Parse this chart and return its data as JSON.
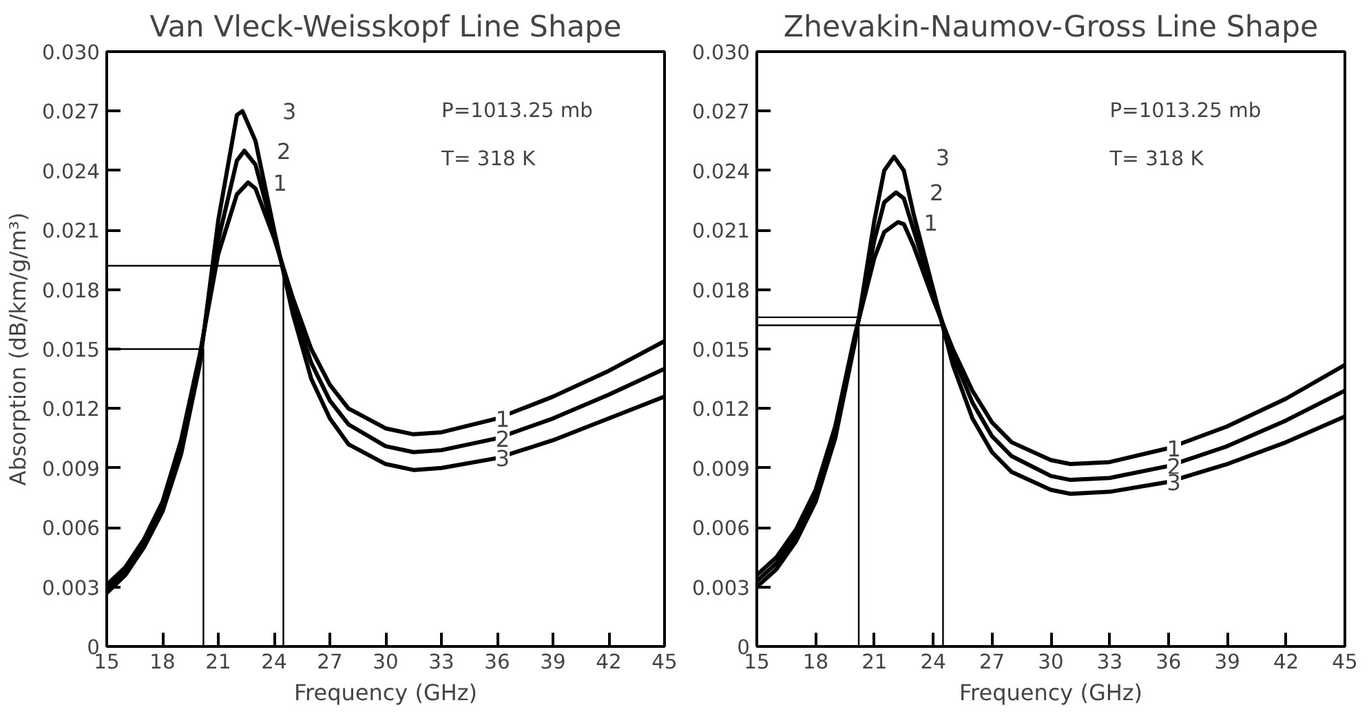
{
  "chart_data": [
    {
      "type": "line",
      "title": "Van Vleck-Weisskopf Line Shape",
      "xlabel": "Frequency (GHz)",
      "ylabel": "Absorption (dB/km/g/m³)",
      "xlim": [
        15,
        45
      ],
      "ylim": [
        0,
        0.03
      ],
      "xticks": [
        15,
        18,
        21,
        24,
        27,
        30,
        33,
        36,
        39,
        42,
        45
      ],
      "yticks": [
        0,
        {
          "value": 0.003,
          "label": "0.003"
        },
        {
          "value": 0.006,
          "label": "0.006"
        },
        {
          "value": 0.009,
          "label": "0.009"
        },
        {
          "value": 0.012,
          "label": "0.012"
        },
        {
          "value": 0.015,
          "label": "0.015"
        },
        {
          "value": 0.018,
          "label": "0.018"
        },
        {
          "value": 0.021,
          "label": "0.021"
        },
        {
          "value": 0.024,
          "label": "0.024"
        },
        {
          "value": 0.027,
          "label": "0.027"
        },
        {
          "value": 0.03,
          "label": "0.030"
        }
      ],
      "annotations": [
        "P=1013.25 mb",
        "T= 318 K"
      ],
      "grid": false,
      "legend": false,
      "series": [
        {
          "name": "1",
          "color": "#000000",
          "x": [
            15,
            16,
            17,
            18,
            19,
            20,
            21,
            22,
            22.6,
            23,
            24,
            25,
            26,
            27,
            28,
            30,
            31.5,
            33,
            36,
            39,
            42,
            45
          ],
          "values": [
            0.0031,
            0.004,
            0.0054,
            0.0073,
            0.0104,
            0.0147,
            0.0198,
            0.0228,
            0.0234,
            0.0231,
            0.0206,
            0.0176,
            0.015,
            0.0132,
            0.012,
            0.011,
            0.0107,
            0.0108,
            0.0115,
            0.0126,
            0.0139,
            0.0154
          ]
        },
        {
          "name": "2",
          "color": "#000000",
          "x": [
            15,
            16,
            17,
            18,
            19,
            20,
            21,
            22,
            22.4,
            23,
            24,
            25,
            26,
            27,
            28,
            30,
            31.5,
            33,
            36,
            39,
            42,
            45
          ],
          "values": [
            0.0029,
            0.0038,
            0.0052,
            0.0071,
            0.0101,
            0.0145,
            0.0205,
            0.0245,
            0.025,
            0.0243,
            0.0208,
            0.0172,
            0.0143,
            0.0124,
            0.0112,
            0.0101,
            0.0098,
            0.0099,
            0.0105,
            0.0115,
            0.0127,
            0.014
          ]
        },
        {
          "name": "3",
          "color": "#000000",
          "x": [
            15,
            16,
            17,
            18,
            19,
            20,
            21,
            22,
            22.3,
            23,
            24,
            25,
            26,
            27,
            28,
            30,
            31.5,
            33,
            36,
            39,
            42,
            45
          ],
          "values": [
            0.0027,
            0.0036,
            0.005,
            0.0068,
            0.0097,
            0.0142,
            0.0215,
            0.0268,
            0.027,
            0.0255,
            0.021,
            0.0168,
            0.0135,
            0.0115,
            0.0102,
            0.0092,
            0.0089,
            0.009,
            0.0095,
            0.0104,
            0.0115,
            0.0126
          ]
        },
        {
          "color": "#000000",
          "x": [
            15,
            24.5,
            24.5
          ],
          "values": [
            0.0192,
            0.0192,
            0
          ]
        },
        {
          "color": "#000000",
          "x": [
            15,
            20.2,
            20.2
          ],
          "values": [
            0.015,
            0.015,
            0
          ]
        }
      ]
    },
    {
      "type": "line",
      "title": "Zhevakin-Naumov-Gross Line Shape",
      "xlabel": "Frequency (GHz)",
      "xlim": [
        15,
        45
      ],
      "ylim": [
        0,
        0.03
      ],
      "xticks": [
        15,
        18,
        21,
        24,
        27,
        30,
        33,
        36,
        39,
        42,
        45
      ],
      "yticks": [
        0,
        {
          "value": 0.003,
          "label": "0.003"
        },
        {
          "value": 0.006,
          "label": "0.006"
        },
        {
          "value": 0.009,
          "label": "0.009"
        },
        {
          "value": 0.012,
          "label": "0.012"
        },
        {
          "value": 0.015,
          "label": "0.015"
        },
        {
          "value": 0.018,
          "label": "0.018"
        },
        {
          "value": 0.021,
          "label": "0.021"
        },
        {
          "value": 0.024,
          "label": "0.024"
        },
        {
          "value": 0.027,
          "label": "0.027"
        },
        {
          "value": 0.03,
          "label": "0.030"
        }
      ],
      "annotations": [
        "P=1013.25 mb",
        "T= 318 K"
      ],
      "grid": false,
      "legend": false,
      "series": [
        {
          "name": "1",
          "color": "#000000",
          "x": [
            15,
            16,
            17,
            18,
            19,
            20,
            21,
            21.5,
            22.2,
            22.5,
            23,
            24,
            25,
            26,
            27,
            28,
            30,
            31,
            33,
            36,
            39,
            42,
            45
          ],
          "values": [
            0.0036,
            0.0045,
            0.0059,
            0.0079,
            0.0111,
            0.0157,
            0.0196,
            0.0209,
            0.0214,
            0.0213,
            0.0202,
            0.0175,
            0.015,
            0.0129,
            0.0113,
            0.0103,
            0.0094,
            0.0092,
            0.0093,
            0.01,
            0.0111,
            0.0125,
            0.0142
          ]
        },
        {
          "name": "2",
          "color": "#000000",
          "x": [
            15,
            16,
            17,
            18,
            19,
            20,
            21,
            21.5,
            22.1,
            22.5,
            23,
            24,
            25,
            26,
            27,
            28,
            30,
            31,
            33,
            36,
            39,
            42,
            45
          ],
          "values": [
            0.0033,
            0.0042,
            0.0056,
            0.0076,
            0.0108,
            0.0155,
            0.0205,
            0.0224,
            0.0229,
            0.0226,
            0.021,
            0.0178,
            0.0147,
            0.0123,
            0.0106,
            0.0096,
            0.0086,
            0.0084,
            0.0085,
            0.0091,
            0.0101,
            0.0114,
            0.0129
          ]
        },
        {
          "name": "3",
          "color": "#000000",
          "x": [
            15,
            16,
            17,
            18,
            19,
            20,
            21,
            21.5,
            22,
            22.5,
            23,
            24,
            25,
            26,
            27,
            28,
            30,
            31,
            33,
            36,
            39,
            42,
            45
          ],
          "values": [
            0.003,
            0.0039,
            0.0053,
            0.0073,
            0.0105,
            0.0153,
            0.0215,
            0.024,
            0.0247,
            0.024,
            0.0218,
            0.018,
            0.0142,
            0.0115,
            0.0098,
            0.0088,
            0.0079,
            0.0077,
            0.0078,
            0.0083,
            0.0092,
            0.0103,
            0.0116
          ]
        },
        {
          "color": "#000000",
          "x": [
            15,
            24.5,
            24.5
          ],
          "values": [
            0.0162,
            0.0162,
            0
          ]
        },
        {
          "color": "#000000",
          "x": [
            15,
            20.2,
            20.2
          ],
          "values": [
            0.0166,
            0.0166,
            0
          ]
        }
      ]
    }
  ]
}
